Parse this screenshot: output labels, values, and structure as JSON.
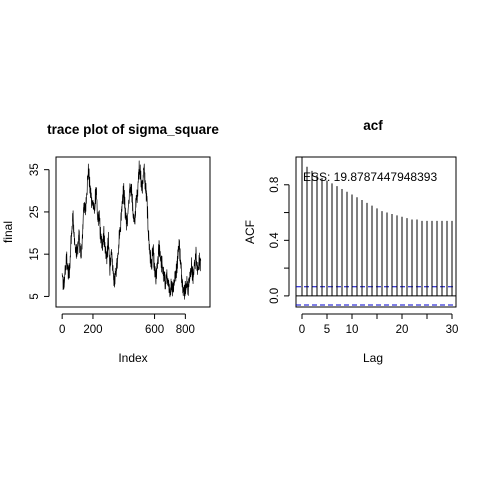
{
  "chart_data": [
    {
      "type": "line",
      "title": "trace plot of sigma_square",
      "xlabel": "Index",
      "ylabel": "final",
      "xlim": [
        -40,
        960
      ],
      "ylim": [
        2.5,
        38
      ],
      "x_ticks": [
        0,
        200,
        600,
        800
      ],
      "y_ticks": [
        5,
        15,
        25,
        35
      ],
      "n": 901,
      "color": "#000000",
      "grid": false,
      "anchors": [
        [
          0,
          10
        ],
        [
          10,
          7
        ],
        [
          20,
          11
        ],
        [
          30,
          14
        ],
        [
          40,
          10
        ],
        [
          50,
          12
        ],
        [
          60,
          20
        ],
        [
          70,
          24
        ],
        [
          80,
          18
        ],
        [
          90,
          15
        ],
        [
          100,
          16
        ],
        [
          110,
          20
        ],
        [
          120,
          14
        ],
        [
          130,
          17
        ],
        [
          140,
          27
        ],
        [
          150,
          25
        ],
        [
          160,
          30
        ],
        [
          170,
          35
        ],
        [
          180,
          31
        ],
        [
          190,
          28
        ],
        [
          200,
          27
        ],
        [
          210,
          25
        ],
        [
          220,
          31
        ],
        [
          230,
          23
        ],
        [
          240,
          24
        ],
        [
          250,
          19
        ],
        [
          260,
          17
        ],
        [
          270,
          20
        ],
        [
          280,
          16
        ],
        [
          290,
          14
        ],
        [
          300,
          18
        ],
        [
          310,
          12
        ],
        [
          320,
          15
        ],
        [
          330,
          11
        ],
        [
          340,
          8
        ],
        [
          350,
          11
        ],
        [
          360,
          14
        ],
        [
          370,
          19
        ],
        [
          380,
          22
        ],
        [
          390,
          28
        ],
        [
          400,
          30
        ],
        [
          410,
          25
        ],
        [
          420,
          22
        ],
        [
          430,
          26
        ],
        [
          440,
          30
        ],
        [
          450,
          31
        ],
        [
          460,
          25
        ],
        [
          470,
          22
        ],
        [
          480,
          27
        ],
        [
          490,
          30
        ],
        [
          500,
          36
        ],
        [
          510,
          33
        ],
        [
          520,
          30
        ],
        [
          530,
          36
        ],
        [
          540,
          31
        ],
        [
          550,
          28
        ],
        [
          560,
          20
        ],
        [
          570,
          15
        ],
        [
          580,
          12
        ],
        [
          590,
          16
        ],
        [
          600,
          11
        ],
        [
          610,
          9
        ],
        [
          620,
          13
        ],
        [
          630,
          17
        ],
        [
          640,
          14
        ],
        [
          650,
          12
        ],
        [
          660,
          10
        ],
        [
          670,
          8
        ],
        [
          680,
          10
        ],
        [
          690,
          7
        ],
        [
          700,
          6
        ],
        [
          710,
          8
        ],
        [
          720,
          7
        ],
        [
          730,
          9
        ],
        [
          740,
          11
        ],
        [
          750,
          14
        ],
        [
          760,
          18
        ],
        [
          770,
          12
        ],
        [
          780,
          9
        ],
        [
          790,
          6
        ],
        [
          800,
          7
        ],
        [
          810,
          8
        ],
        [
          820,
          7
        ],
        [
          830,
          10
        ],
        [
          840,
          12
        ],
        [
          850,
          9
        ],
        [
          860,
          13
        ],
        [
          870,
          15
        ],
        [
          880,
          11
        ],
        [
          890,
          14
        ],
        [
          900,
          12
        ]
      ]
    },
    {
      "type": "bar",
      "title": "acf",
      "xlabel": "Lag",
      "ylabel": "ACF",
      "xlim": [
        -1.2,
        30.8
      ],
      "ylim": [
        -0.08,
        1.0
      ],
      "x_ticks": [
        0,
        5,
        10,
        20,
        30
      ],
      "y_ticks": [
        0.0,
        0.4,
        0.8
      ],
      "lags": [
        0,
        1,
        2,
        3,
        4,
        5,
        6,
        7,
        8,
        9,
        10,
        11,
        12,
        13,
        14,
        15,
        16,
        17,
        18,
        19,
        20,
        21,
        22,
        23,
        24,
        25,
        26,
        27,
        28,
        29,
        30
      ],
      "values": [
        1.0,
        0.93,
        0.9,
        0.87,
        0.85,
        0.83,
        0.81,
        0.79,
        0.77,
        0.75,
        0.73,
        0.71,
        0.69,
        0.67,
        0.65,
        0.63,
        0.61,
        0.6,
        0.59,
        0.58,
        0.57,
        0.56,
        0.55,
        0.55,
        0.54,
        0.54,
        0.54,
        0.54,
        0.54,
        0.54,
        0.54
      ],
      "conf_bound": 0.066,
      "bound_color": "#0000cc",
      "annotation": "ESS: 19.8787447948393",
      "grid": false
    }
  ]
}
